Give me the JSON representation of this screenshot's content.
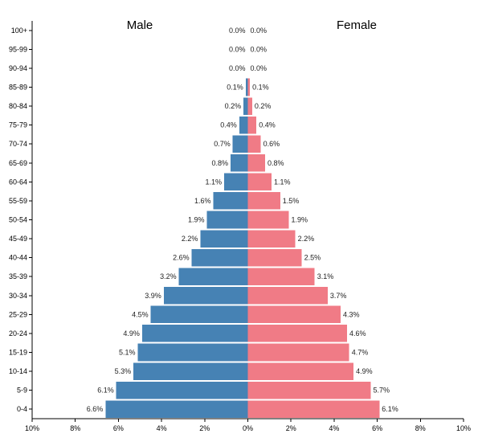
{
  "chart_data": {
    "type": "bar",
    "orientation": "horizontal-pyramid",
    "side_titles": {
      "male": "Male",
      "female": "Female"
    },
    "categories": [
      "0-4",
      "5-9",
      "10-14",
      "15-19",
      "20-24",
      "25-29",
      "30-34",
      "35-39",
      "40-44",
      "45-49",
      "50-54",
      "55-59",
      "60-64",
      "65-69",
      "70-74",
      "75-79",
      "80-84",
      "85-89",
      "90-94",
      "95-99",
      "100+"
    ],
    "series": [
      {
        "name": "Male",
        "values": [
          6.6,
          6.1,
          5.3,
          5.1,
          4.9,
          4.5,
          3.9,
          3.2,
          2.6,
          2.2,
          1.9,
          1.6,
          1.1,
          0.8,
          0.7,
          0.4,
          0.2,
          0.1,
          0.0,
          0.0,
          0.0
        ],
        "labels": [
          "6.6%",
          "6.1%",
          "5.3%",
          "5.1%",
          "4.9%",
          "4.5%",
          "3.9%",
          "3.2%",
          "2.6%",
          "2.2%",
          "1.9%",
          "1.6%",
          "1.1%",
          "0.8%",
          "0.7%",
          "0.4%",
          "0.2%",
          "0.1%",
          "0.0%",
          "0.0%",
          "0.0%"
        ],
        "color": "#4682b4"
      },
      {
        "name": "Female",
        "values": [
          6.1,
          5.7,
          4.9,
          4.7,
          4.6,
          4.3,
          3.7,
          3.1,
          2.5,
          2.2,
          1.9,
          1.5,
          1.1,
          0.8,
          0.6,
          0.4,
          0.2,
          0.1,
          0.0,
          0.0,
          0.0
        ],
        "labels": [
          "6.1%",
          "5.7%",
          "4.9%",
          "4.7%",
          "4.6%",
          "4.3%",
          "3.7%",
          "3.1%",
          "2.5%",
          "2.2%",
          "1.9%",
          "1.5%",
          "1.1%",
          "0.8%",
          "0.6%",
          "0.4%",
          "0.2%",
          "0.1%",
          "0.0%",
          "0.0%",
          "0.0%"
        ],
        "color": "#f07b86"
      }
    ],
    "x_ticks": [
      "10%",
      "8%",
      "6%",
      "4%",
      "2%",
      "0%",
      "2%",
      "4%",
      "6%",
      "8%",
      "10%"
    ],
    "xlim": [
      -10,
      10
    ],
    "grid": false
  }
}
